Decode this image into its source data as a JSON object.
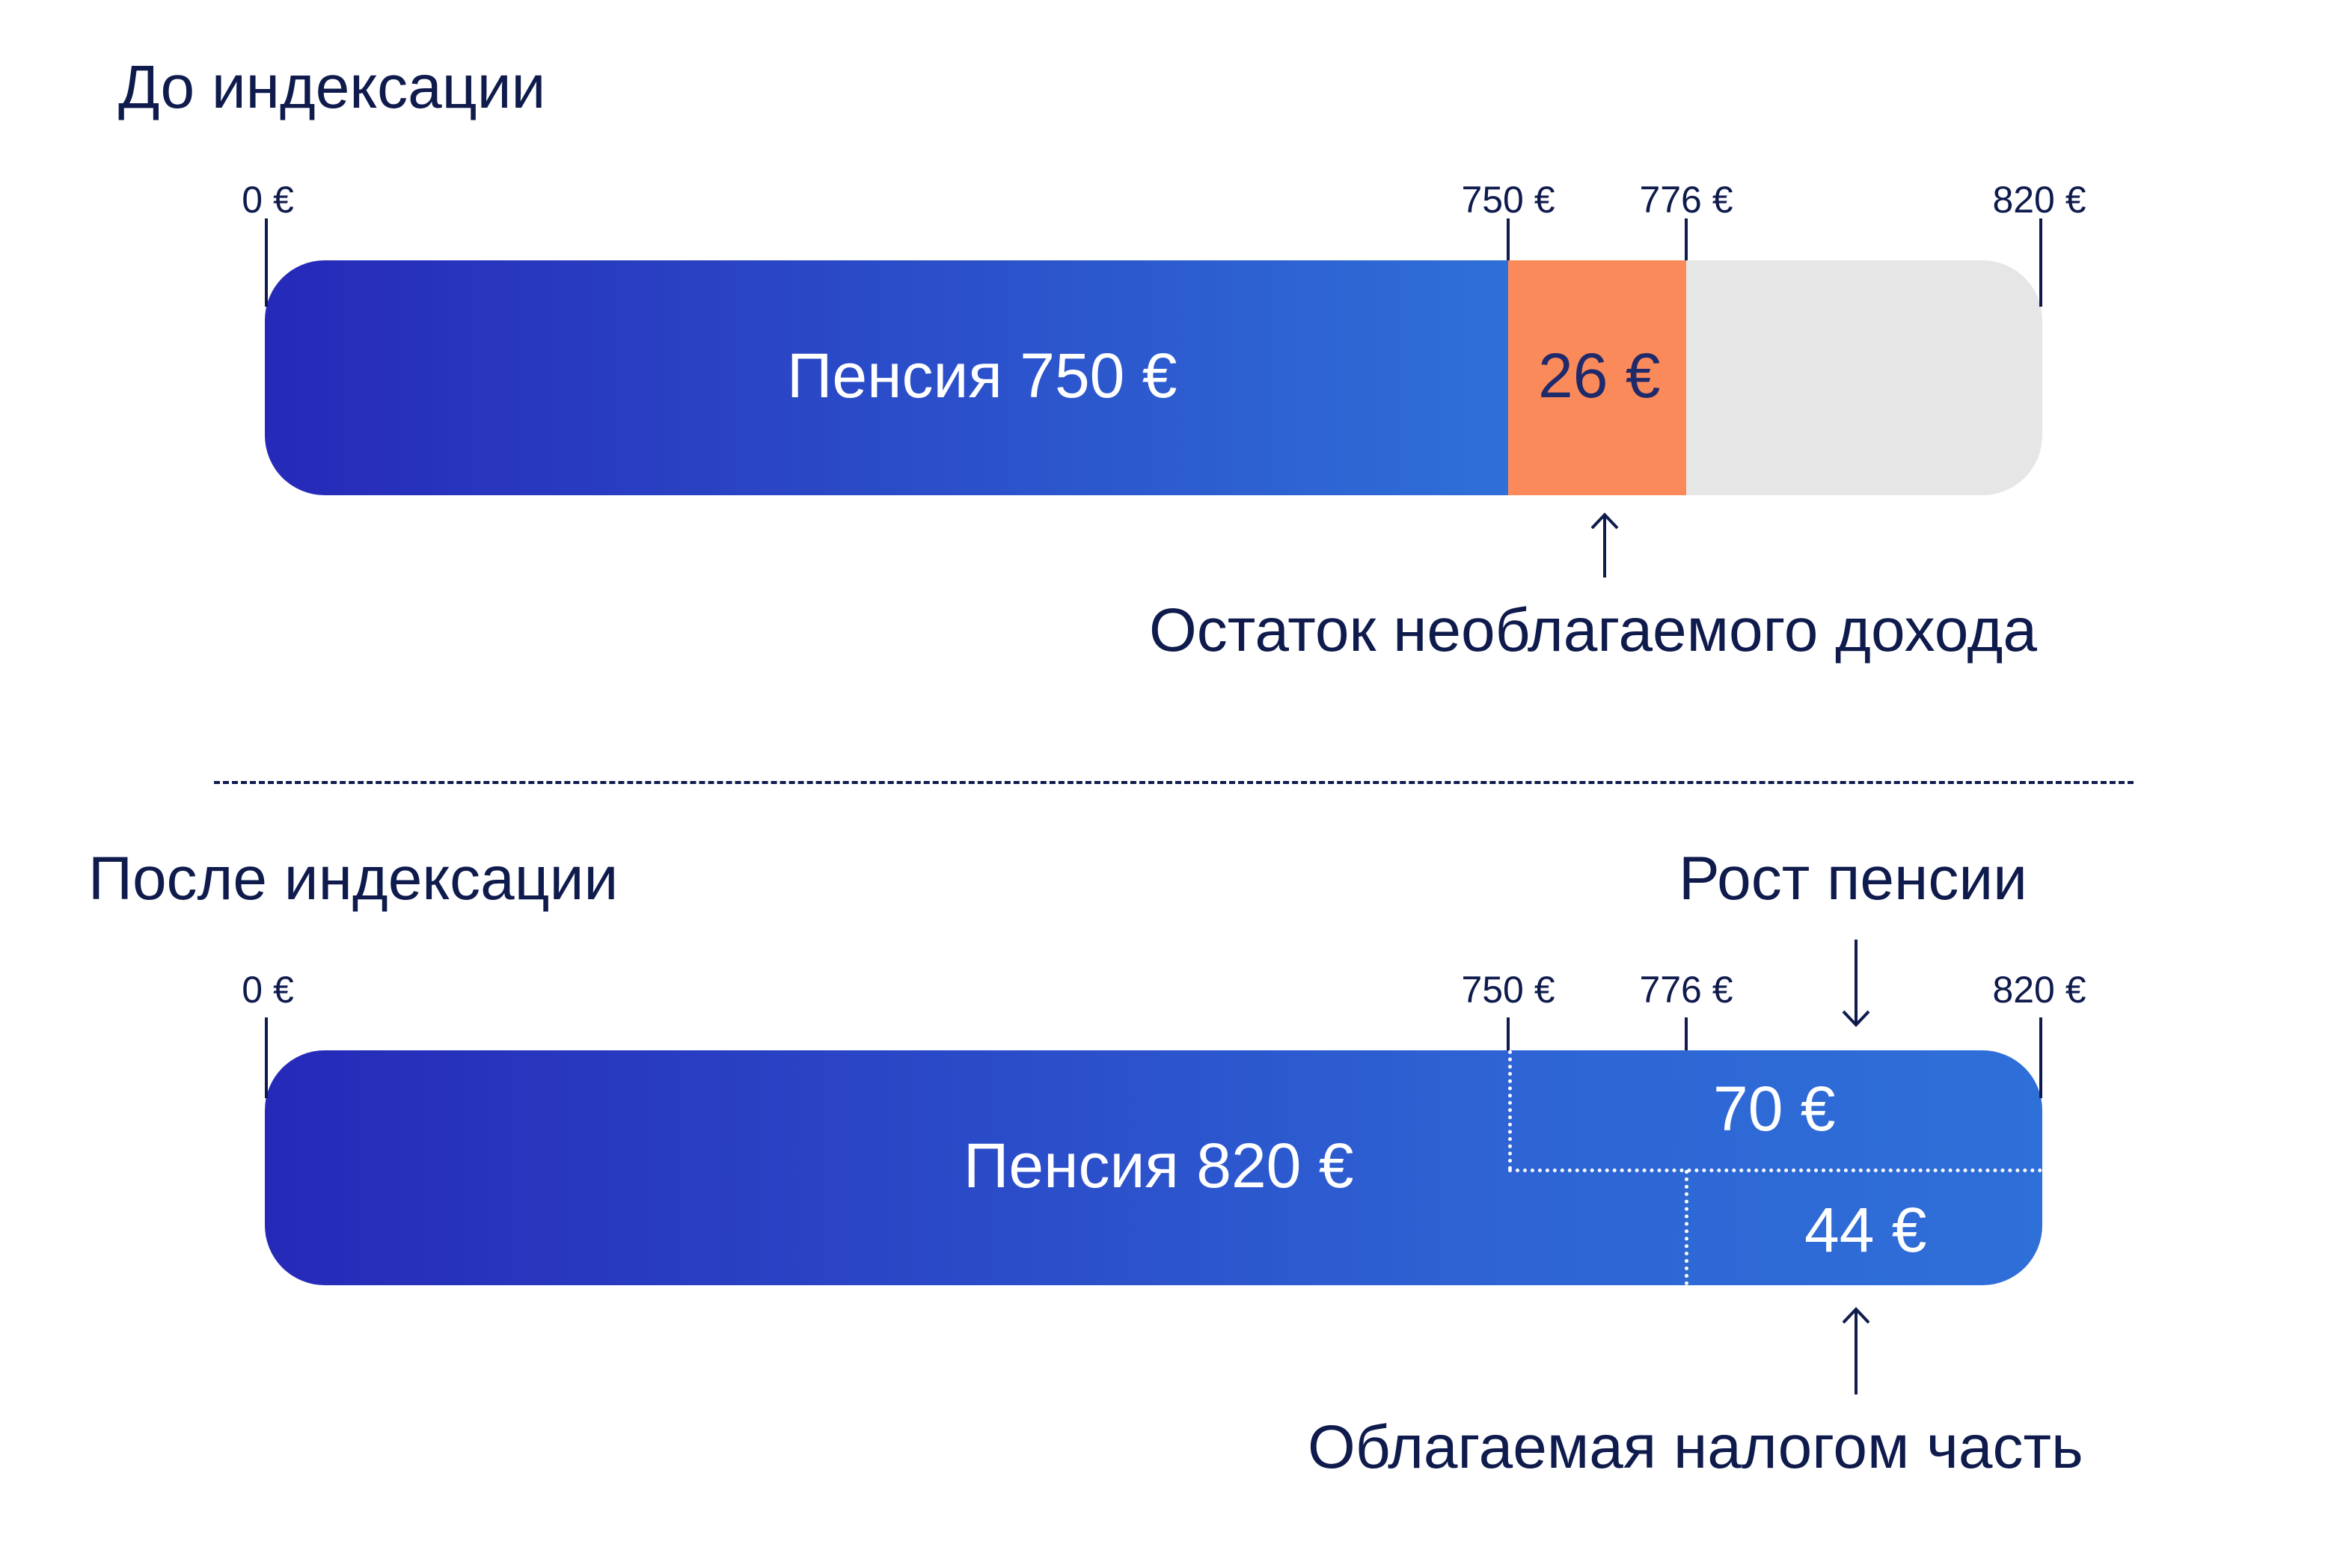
{
  "before": {
    "title": "До индексации",
    "ticks": [
      "0 €",
      "750 €",
      "776 €",
      "820 €"
    ],
    "pension_label": "Пенсия 750 €",
    "remainder_label": "26 €",
    "caption": "Остаток необлагаемого дохода"
  },
  "after": {
    "title": "После индексации",
    "growth_caption": "Рост пенсии",
    "ticks": [
      "0 €",
      "750 €",
      "776 €",
      "820 €"
    ],
    "pension_label": "Пенсия 820 €",
    "growth_label": "70 €",
    "taxable_label": "44 €",
    "caption": "Облагаемая налогом часть"
  },
  "colors": {
    "gradient_start": "#2629b8",
    "gradient_end": "#2f6fd8",
    "remainder": "#fb8a5a",
    "unused": "#e6e6e6",
    "text": "#0f1b4c"
  },
  "chart_data": {
    "type": "bar",
    "axis_ticks": [
      0,
      750,
      776,
      820
    ],
    "axis_unit": "€",
    "bars": [
      {
        "title": "До индексации",
        "segments": [
          {
            "label": "Пенсия 750 €",
            "from": 0,
            "to": 750
          },
          {
            "label": "26 €",
            "from": 750,
            "to": 776
          },
          {
            "label": "",
            "from": 776,
            "to": 820
          }
        ]
      },
      {
        "title": "После индексации",
        "segments": [
          {
            "label": "Пенсия 820 €",
            "from": 0,
            "to": 820
          },
          {
            "label": "70 €",
            "from": 750,
            "to": 820
          },
          {
            "label": "44 €",
            "from": 776,
            "to": 820
          }
        ]
      }
    ]
  }
}
